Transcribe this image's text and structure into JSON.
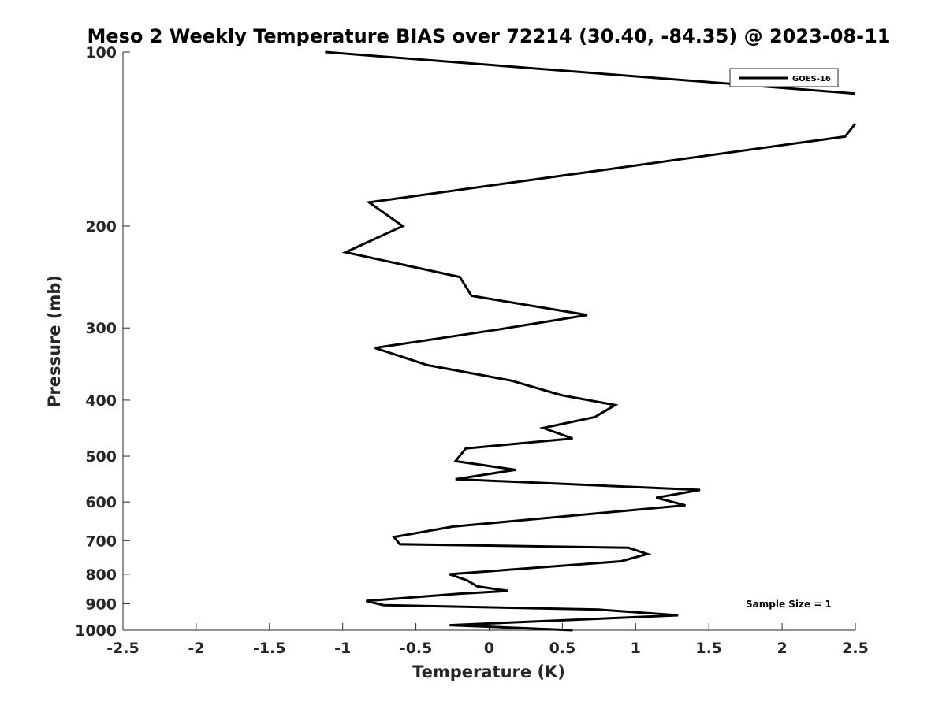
{
  "chart_data": {
    "type": "line",
    "title": "Meso 2 Weekly Temperature BIAS over 72214 (30.40, -84.35) @ 2023-08-11",
    "xlabel": "Temperature (K)",
    "ylabel": "Pressure (mb)",
    "xlim": [
      -2.5,
      2.5
    ],
    "ylim": [
      100,
      1000
    ],
    "y_scale": "log",
    "y_reversed": true,
    "xticks": [
      -2.5,
      -2,
      -1.5,
      -1,
      -0.5,
      0,
      0.5,
      1,
      1.5,
      2,
      2.5
    ],
    "xtick_labels": [
      "-2.5",
      "-2",
      "-1.5",
      "-1",
      "-0.5",
      "0",
      "0.5",
      "1",
      "1.5",
      "2",
      "2.5"
    ],
    "yticks": [
      100,
      200,
      300,
      400,
      500,
      600,
      700,
      800,
      900,
      1000
    ],
    "ytick_labels": [
      "100",
      "200",
      "300",
      "400",
      "500",
      "600",
      "700",
      "800",
      "900",
      "1000"
    ],
    "grid": false,
    "legend_position": "top-right",
    "annotation": "Sample Size = 1",
    "series": [
      {
        "name": "GOES-16",
        "color": "#000000",
        "segments": [
          [
            [
              -1.12,
              100
            ],
            [
              2.5,
              118
            ]
          ],
          [
            [
              2.5,
              133
            ],
            [
              2.43,
              140
            ],
            [
              -0.82,
              182
            ],
            [
              -0.59,
              200
            ],
            [
              -0.98,
              222
            ],
            [
              -0.2,
              245
            ],
            [
              -0.12,
              264
            ],
            [
              0.67,
              285
            ],
            [
              0.06,
              302
            ],
            [
              -0.78,
              325
            ],
            [
              -0.42,
              348
            ],
            [
              0.15,
              370
            ],
            [
              0.49,
              392
            ],
            [
              0.86,
              408
            ],
            [
              0.72,
              428
            ],
            [
              0.37,
              447
            ],
            [
              0.57,
              466
            ],
            [
              -0.16,
              485
            ],
            [
              -0.23,
              510
            ],
            [
              0.18,
              528
            ],
            [
              -0.23,
              548
            ],
            [
              1.44,
              572
            ],
            [
              1.14,
              590
            ],
            [
              1.34,
              608
            ],
            [
              -0.25,
              662
            ],
            [
              -0.65,
              690
            ],
            [
              -0.61,
              710
            ],
            [
              0.95,
              720
            ],
            [
              1.08,
              738
            ],
            [
              0.9,
              760
            ],
            [
              -0.27,
              800
            ],
            [
              -0.15,
              820
            ],
            [
              -0.08,
              840
            ],
            [
              0.13,
              855
            ],
            [
              -0.21,
              865
            ],
            [
              -0.84,
              890
            ],
            [
              -0.72,
              905
            ],
            [
              0.75,
              921
            ],
            [
              1.29,
              942
            ],
            [
              -0.27,
              980
            ],
            [
              0.57,
              1000
            ]
          ]
        ]
      }
    ]
  }
}
